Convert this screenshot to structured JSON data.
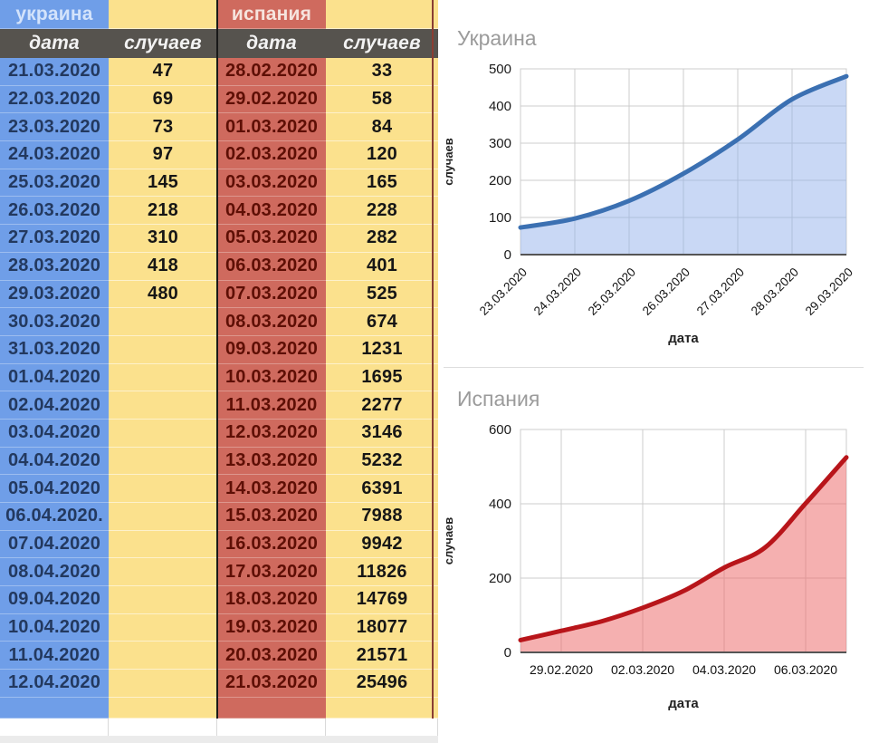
{
  "table": {
    "ukraine_header": "украина",
    "spain_header": "испания",
    "col_headers": [
      "дата",
      "случаев",
      "дата",
      "случаев"
    ],
    "rows": [
      [
        "21.03.2020",
        "47",
        "28.02.2020",
        "33"
      ],
      [
        "22.03.2020",
        "69",
        "29.02.2020",
        "58"
      ],
      [
        "23.03.2020",
        "73",
        "01.03.2020",
        "84"
      ],
      [
        "24.03.2020",
        "97",
        "02.03.2020",
        "120"
      ],
      [
        "25.03.2020",
        "145",
        "03.03.2020",
        "165"
      ],
      [
        "26.03.2020",
        "218",
        "04.03.2020",
        "228"
      ],
      [
        "27.03.2020",
        "310",
        "05.03.2020",
        "282"
      ],
      [
        "28.03.2020",
        "418",
        "06.03.2020",
        "401"
      ],
      [
        "29.03.2020",
        "480",
        "07.03.2020",
        "525"
      ],
      [
        "30.03.2020",
        "",
        "08.03.2020",
        "674"
      ],
      [
        "31.03.2020",
        "",
        "09.03.2020",
        "1231"
      ],
      [
        "01.04.2020",
        "",
        "10.03.2020",
        "1695"
      ],
      [
        "02.04.2020",
        "",
        "11.03.2020",
        "2277"
      ],
      [
        "03.04.2020",
        "",
        "12.03.2020",
        "3146"
      ],
      [
        "04.04.2020",
        "",
        "13.03.2020",
        "5232"
      ],
      [
        "05.04.2020",
        "",
        "14.03.2020",
        "6391"
      ],
      [
        "06.04.2020.",
        "",
        "15.03.2020",
        "7988"
      ],
      [
        "07.04.2020",
        "",
        "16.03.2020",
        "9942"
      ],
      [
        "08.04.2020",
        "",
        "17.03.2020",
        "11826"
      ],
      [
        "09.04.2020",
        "",
        "18.03.2020",
        "14769"
      ],
      [
        "10.04.2020",
        "",
        "19.03.2020",
        "18077"
      ],
      [
        "11.04.2020",
        "",
        "20.03.2020",
        "21571"
      ],
      [
        "12.04.2020",
        "",
        "21.03.2020",
        "25496"
      ],
      [
        "",
        "",
        "",
        ""
      ]
    ]
  },
  "colors": {
    "ukraine_cell_bg": "#6f9ee8",
    "cases_cell_bg": "#fbe18d",
    "spain_cell_bg": "#cf6a5e",
    "header_row_bg": "#56534e",
    "ukraine_date_text": "#23395f",
    "spain_date_text": "#5e0f05",
    "cases_text": "#161616",
    "ukraine_header_text": "#d3e3fb",
    "spain_header_text": "#f6e4de",
    "ukraine_line": "#3b70b2",
    "spain_line": "#b8151a"
  },
  "chart_data": [
    {
      "type": "area",
      "title": "Украина",
      "xlabel": "дата",
      "ylabel": "случаев",
      "x": [
        "23.03.2020",
        "24.03.2020",
        "25.03.2020",
        "26.03.2020",
        "27.03.2020",
        "28.03.2020",
        "29.03.2020"
      ],
      "values": [
        73,
        97,
        145,
        218,
        310,
        418,
        480
      ],
      "ylim": [
        0,
        500
      ],
      "yticks": [
        0,
        100,
        200,
        300,
        400,
        500
      ],
      "xtick_positions": [
        0,
        1,
        2,
        3,
        4,
        5,
        6
      ],
      "xtick_labels": [
        "23.03.2020",
        "24.03.2020",
        "25.03.2020",
        "26.03.2020",
        "27.03.2020",
        "28.03.2020",
        "29.03.2020"
      ],
      "xtick_rotation": -45,
      "grid": true,
      "legend": "none",
      "line_color": "#3b70b2",
      "fill_color": "rgba(148,178,235,0.50)",
      "title_color": "#9b9b9b"
    },
    {
      "type": "area",
      "title": "Испания",
      "xlabel": "дата",
      "ylabel": "случаев",
      "x": [
        "28.02.2020",
        "29.02.2020",
        "01.03.2020",
        "02.03.2020",
        "03.03.2020",
        "04.03.2020",
        "05.03.2020",
        "06.03.2020",
        "07.03.2020"
      ],
      "values": [
        33,
        58,
        84,
        120,
        165,
        228,
        282,
        401,
        525
      ],
      "ylim": [
        0,
        600
      ],
      "yticks": [
        0,
        200,
        400,
        600
      ],
      "xtick_positions": [
        1,
        3,
        5,
        7
      ],
      "xtick_labels": [
        "29.02.2020",
        "02.03.2020",
        "04.03.2020",
        "06.03.2020"
      ],
      "xtick_rotation": 0,
      "grid": true,
      "legend": "none",
      "line_color": "#b8151a",
      "fill_color": "rgba(236,112,112,0.55)",
      "title_color": "#9b9b9b"
    }
  ]
}
